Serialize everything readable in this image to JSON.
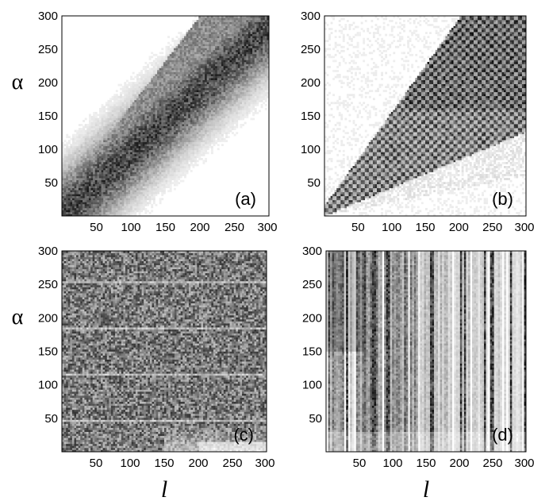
{
  "chart_data": [
    {
      "type": "heatmap",
      "panel_label": "(a)",
      "pattern": "diagonal-band",
      "xlim": [
        0,
        300
      ],
      "ylim": [
        0,
        300
      ],
      "xticks": [
        50,
        100,
        150,
        200,
        250,
        300
      ],
      "yticks": [
        50,
        100,
        150,
        200,
        250,
        300
      ],
      "xticks_shown": true,
      "ylabel": "α",
      "xlabel": "",
      "colormap": "grayscale (white = low, black = high)"
    },
    {
      "type": "heatmap",
      "panel_label": "(b)",
      "pattern": "checkerboard-wedge",
      "xlim": [
        0,
        300
      ],
      "ylim": [
        0,
        300
      ],
      "xticks": [
        50,
        100,
        150,
        200,
        250,
        300
      ],
      "yticks": [
        50,
        100,
        150,
        200,
        250,
        300
      ],
      "xticks_shown": true,
      "ylabel": "",
      "xlabel": "",
      "colormap": "grayscale (white = low, black = high)"
    },
    {
      "type": "heatmap",
      "panel_label": "(c)",
      "pattern": "uniform-noise",
      "xlim": [
        0,
        300
      ],
      "ylim": [
        0,
        300
      ],
      "xticks": [
        50,
        100,
        150,
        200,
        250,
        300
      ],
      "yticks": [
        50,
        100,
        150,
        200,
        250,
        300
      ],
      "xticks_shown": true,
      "ylabel": "α",
      "xlabel": "l",
      "colormap": "grayscale (white = low, black = high)"
    },
    {
      "type": "heatmap",
      "panel_label": "(d)",
      "pattern": "vertical-stripes",
      "xlim": [
        0,
        300
      ],
      "ylim": [
        0,
        300
      ],
      "xticks": [
        50,
        100,
        150,
        200,
        250,
        300
      ],
      "yticks": [
        50,
        100,
        150,
        200,
        250,
        300
      ],
      "xticks_shown": true,
      "ylabel": "",
      "xlabel": "l",
      "colormap": "grayscale (white = low, black = high)"
    }
  ]
}
